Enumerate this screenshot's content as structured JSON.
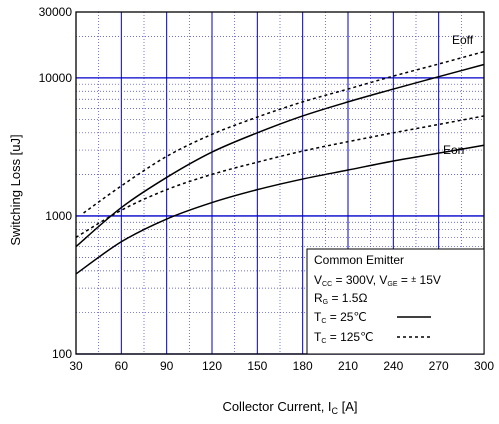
{
  "chart_data": {
    "type": "line",
    "xlabel": {
      "main": "Collector Current, I",
      "sub": "C",
      "unit": " [A]"
    },
    "ylabel": "Switching Loss [uJ]",
    "x_ticks": [
      30,
      60,
      90,
      120,
      150,
      180,
      210,
      240,
      270,
      300
    ],
    "x_tick_labels": [
      "30",
      "60",
      "90",
      "120",
      "150",
      "180",
      "210",
      "240",
      "270",
      "300"
    ],
    "xlim": [
      30,
      300
    ],
    "y_scale": "log",
    "ylim": [
      100,
      30000
    ],
    "y_tick_labels": [
      {
        "value": 100,
        "label": "100"
      },
      {
        "value": 1000,
        "label": "1000"
      },
      {
        "value": 10000,
        "label": "10000"
      },
      {
        "value": 30000,
        "label": "30000"
      }
    ],
    "grid": true,
    "series": [
      {
        "curve_label": "Eoff",
        "temp": "25",
        "style": "solid",
        "x": [
          30,
          60,
          90,
          120,
          150,
          180,
          210,
          240,
          270,
          300
        ],
        "y": [
          600,
          1150,
          1900,
          2900,
          4000,
          5300,
          6700,
          8300,
          10200,
          12500
        ]
      },
      {
        "curve_label": "Eoff",
        "temp": "125",
        "style": "dashed",
        "x": [
          35,
          60,
          90,
          120,
          150,
          180,
          210,
          240,
          270,
          300
        ],
        "y": [
          1050,
          1650,
          2700,
          3900,
          5200,
          6700,
          8300,
          10300,
          12600,
          15500
        ]
      },
      {
        "curve_label": "Eon",
        "temp": "25",
        "style": "solid",
        "x": [
          30,
          60,
          90,
          120,
          150,
          180,
          210,
          240,
          270,
          300
        ],
        "y": [
          380,
          650,
          950,
          1250,
          1550,
          1850,
          2150,
          2500,
          2850,
          3250
        ]
      },
      {
        "curve_label": "Eon",
        "temp": "125",
        "style": "dashed",
        "x": [
          30,
          60,
          90,
          120,
          150,
          180,
          210,
          240,
          270,
          300
        ],
        "y": [
          700,
          1100,
          1550,
          2000,
          2450,
          2950,
          3450,
          4000,
          4600,
          5300
        ]
      }
    ],
    "curve_labels": [
      "Eoff",
      "Eon"
    ],
    "legend": {
      "position": "bottom-right",
      "title": "Common Emitter",
      "line1": "V(CC) = 300V, V(GE) = ± 15V",
      "line2": "R(G) = 1.5Ω",
      "line3": "T(C) = 25℃",
      "line4": "T(C) = 125℃"
    },
    "colors": {
      "grid_major": "#0000c8",
      "grid_minor": "#3a3ad8",
      "curve": "#000000"
    }
  }
}
